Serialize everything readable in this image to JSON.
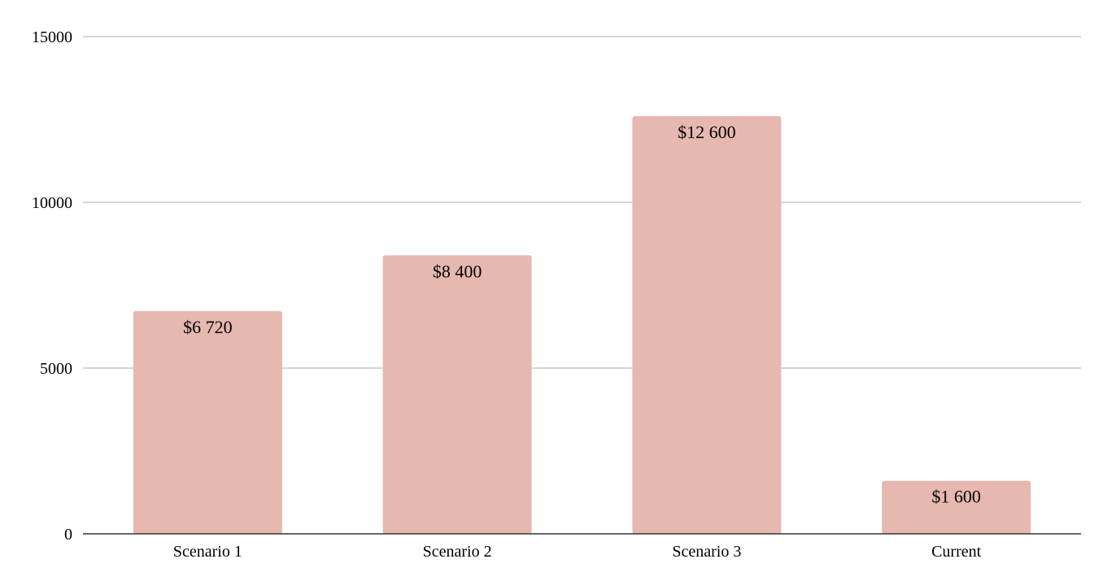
{
  "chart_data": {
    "type": "bar",
    "title": "",
    "xlabel": "",
    "ylabel": "",
    "categories": [
      "Scenario 1",
      "Scenario 2",
      "Scenario 3",
      "Current"
    ],
    "values": [
      6720,
      8400,
      12600,
      1600
    ],
    "data_labels": [
      "$6 720",
      "$8 400",
      "$12 600",
      "$1 600"
    ],
    "ylim": [
      0,
      15000
    ],
    "yticks": [
      0,
      5000,
      10000,
      15000
    ],
    "ytick_labels": [
      "0",
      "5000",
      "10000",
      "15000"
    ],
    "grid": true,
    "legend": "none",
    "colors": {
      "bar": "#e6b8b0",
      "grid": "#c8c8c8",
      "axis": "#333333",
      "text": "#000000"
    }
  }
}
